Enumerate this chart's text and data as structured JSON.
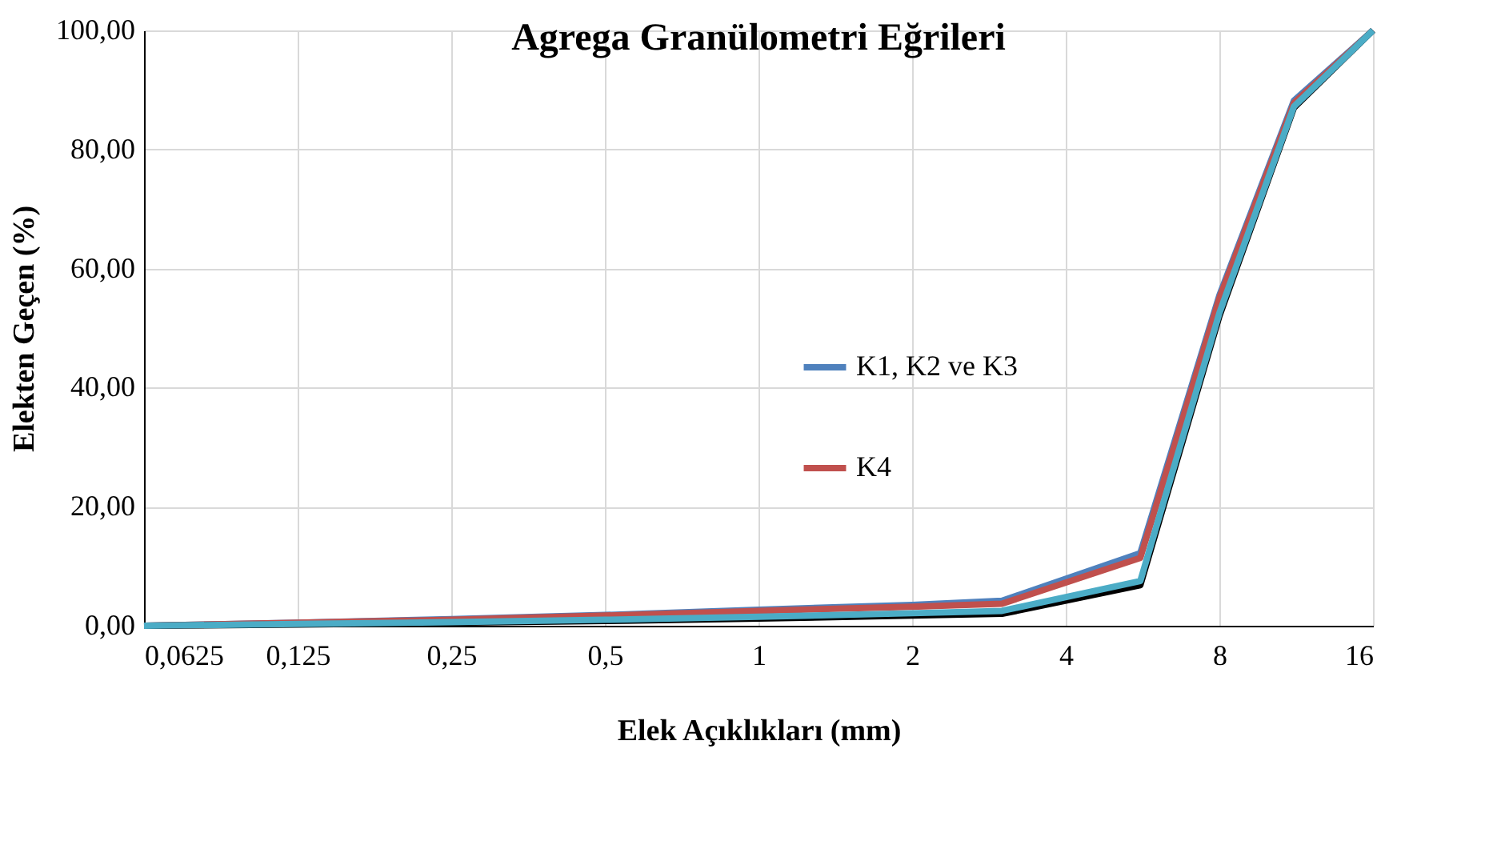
{
  "chart_data": {
    "type": "line",
    "title": "Agrega Granülometri Eğrileri",
    "xlabel": "Elek Açıklıkları (mm)",
    "ylabel": "Elekten Geçen (%)",
    "log": "x",
    "xlim": [
      0.0625,
      16
    ],
    "ylim": [
      0,
      100
    ],
    "xticks": [
      {
        "value": 0.0625,
        "label": "0,0625"
      },
      {
        "value": 0.125,
        "label": "0,125"
      },
      {
        "value": 0.25,
        "label": "0,25"
      },
      {
        "value": 0.5,
        "label": "0,5"
      },
      1,
      2,
      4,
      8,
      16
    ],
    "yticks": [
      {
        "value": 0,
        "label": "0,00"
      },
      {
        "value": 20,
        "label": "20,00"
      },
      {
        "value": 40,
        "label": "40,00"
      },
      {
        "value": 60,
        "label": "60,00"
      },
      {
        "value": 80,
        "label": "80,00"
      },
      {
        "value": 100,
        "label": "100,00"
      }
    ],
    "x": [
      0.0625,
      0.125,
      0.25,
      0.5,
      1,
      2,
      3,
      5.6,
      8,
      11.2,
      16
    ],
    "grid": true,
    "legend": "right",
    "marker": "none",
    "line_style": "solid",
    "series": [
      {
        "name": "K1, K2 ve K3",
        "color": "#4f81bd",
        "values": [
          0,
          0.5,
          1.1,
          1.8,
          2.7,
          3.5,
          4.2,
          12.2,
          55.5,
          88.2,
          100
        ]
      },
      {
        "name": "K4",
        "color": "#c0504d",
        "values": [
          0,
          0.5,
          1.0,
          1.7,
          2.5,
          3.2,
          3.7,
          11.4,
          55,
          87.8,
          100
        ]
      },
      {
        "color": "#000000",
        "values": [
          0,
          0.2,
          0.5,
          0.8,
          1.2,
          1.7,
          2.0,
          6.8,
          52,
          87,
          100
        ]
      },
      {
        "color": "#4bacc6",
        "values": [
          0,
          0.3,
          0.6,
          1.0,
          1.5,
          2.1,
          2.5,
          7.5,
          52.5,
          87.2,
          100
        ]
      }
    ]
  }
}
